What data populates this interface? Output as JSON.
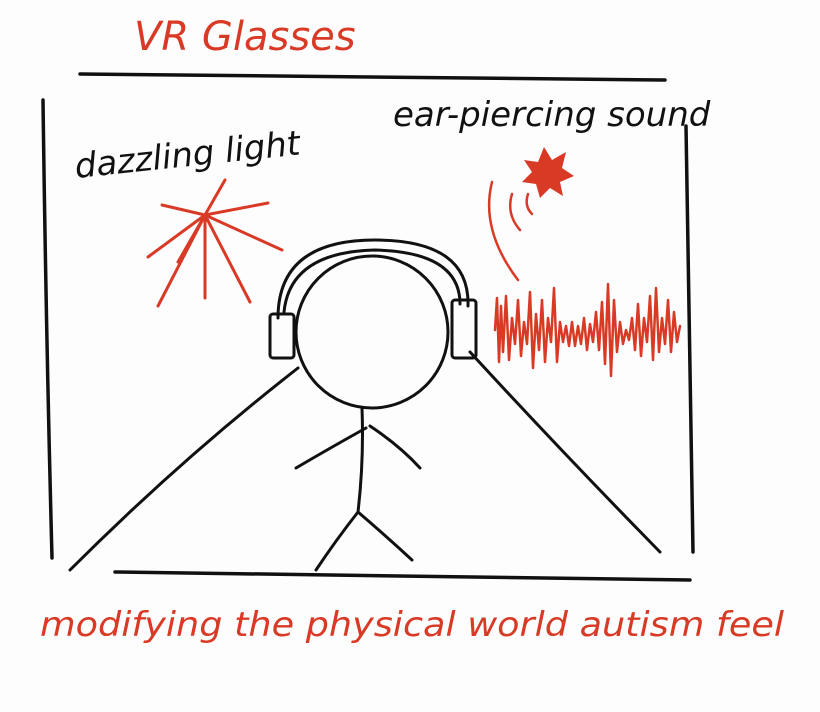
{
  "title": "VR Glasses",
  "labels": {
    "light": "dazzling light",
    "sound": "ear-piercing sound"
  },
  "caption": "modifying the physical world autism feel",
  "colors": {
    "ink": "#111111",
    "accent_red": "#d93a26",
    "background": "#fdfdfd"
  },
  "icons": {
    "light": "starburst-icon",
    "sound_source": "splat-icon",
    "sound_wave": "waveform-icon",
    "headphones": "headphones-icon"
  }
}
